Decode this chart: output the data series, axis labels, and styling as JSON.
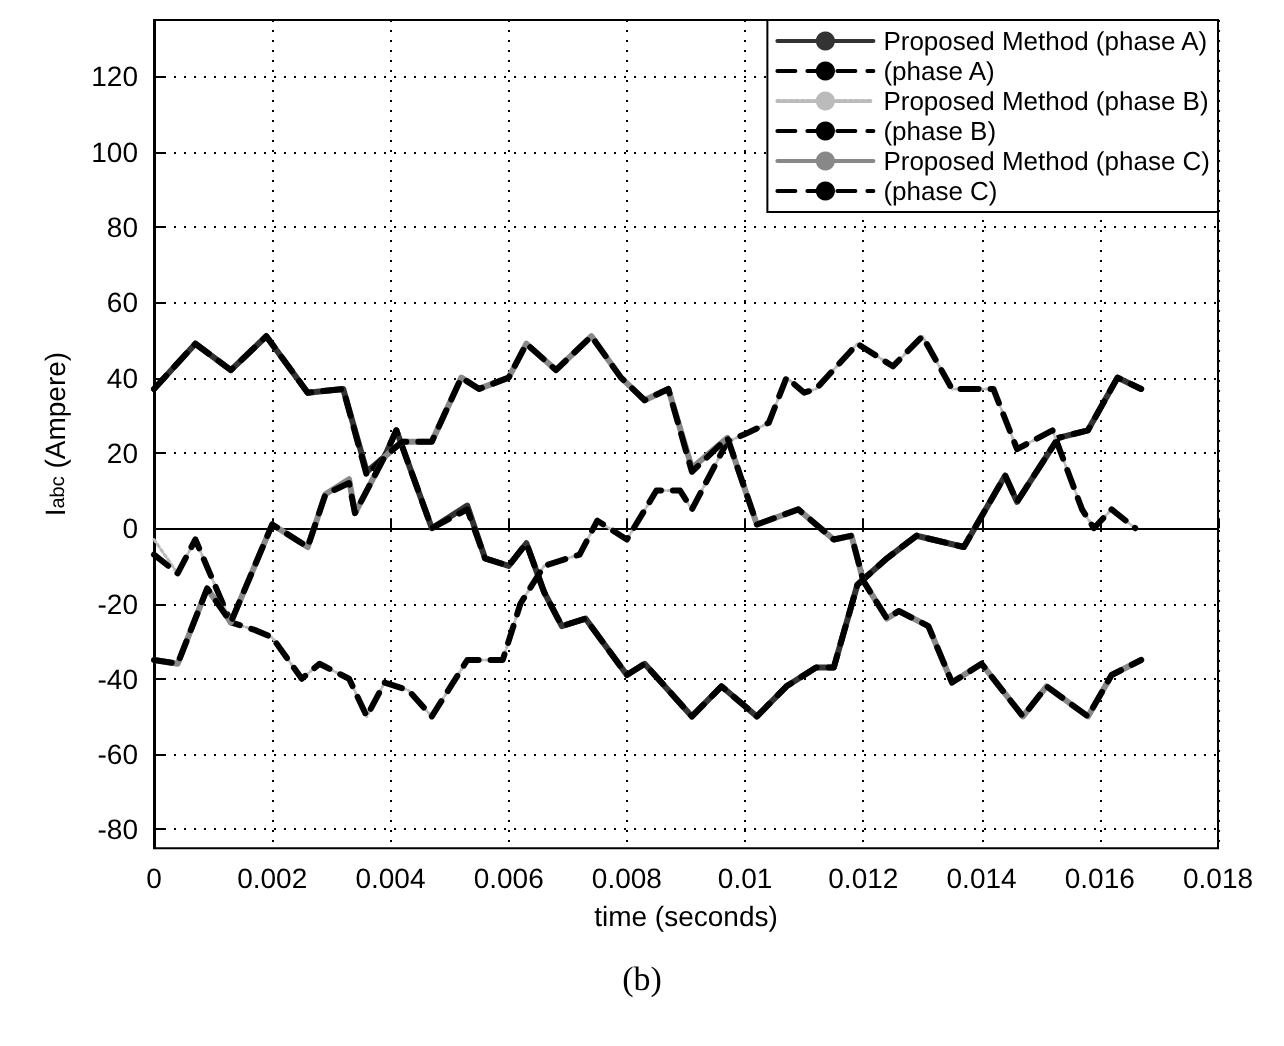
{
  "chart_data": {
    "type": "line",
    "xlabel": "time (seconds)",
    "ylabel": "I$_{abc}$ (Ampere)",
    "annotations": [
      "(b)"
    ],
    "xlim": [
      0,
      0.018
    ],
    "xticks": [
      0,
      0.002,
      0.004,
      0.006,
      0.008,
      0.01,
      0.012,
      0.014,
      0.016,
      0.018
    ],
    "ylim": [
      -85,
      135
    ],
    "yticks": [
      -80,
      -60,
      -40,
      -20,
      0,
      20,
      40,
      60,
      80,
      100,
      120
    ],
    "grid": true,
    "legend": "top right",
    "marker": "none",
    "series": [
      {
        "name": "Proposed Method (phase A)",
        "color": "#333333",
        "line_style": "solid",
        "x": [
          0,
          0.0007,
          0.0013,
          0.0019,
          0.0026,
          0.0032,
          0.0036,
          0.0039,
          0.0041,
          0.0047,
          0.0053,
          0.0056,
          0.006,
          0.0063,
          0.0066,
          0.0069,
          0.0073,
          0.008,
          0.0083,
          0.0091,
          0.0096,
          0.0102,
          0.0107,
          0.0112,
          0.0115,
          0.0119,
          0.0124,
          0.0129,
          0.0137,
          0.0144,
          0.0146,
          0.0153,
          0.0158,
          0.0163,
          0.0167
        ],
        "values": [
          37,
          49,
          42,
          51,
          36,
          37,
          15,
          19,
          26,
          0,
          6,
          -8,
          -10,
          -4,
          -17,
          -26,
          -24,
          -39,
          -36,
          -50,
          -42,
          -50,
          -42,
          -37,
          -37,
          -15,
          -8,
          -2,
          -5,
          14,
          7,
          24,
          26,
          40,
          37
        ]
      },
      {
        "name": "(phase A)",
        "color": "#000000",
        "line_style": "dashed",
        "x": [
          0,
          0.0007,
          0.0013,
          0.0019,
          0.0026,
          0.0032,
          0.0036,
          0.0039,
          0.0041,
          0.0047,
          0.0053,
          0.0056,
          0.006,
          0.0063,
          0.0066,
          0.0069,
          0.0073,
          0.008,
          0.0083,
          0.0091,
          0.0096,
          0.0102,
          0.0107,
          0.0112,
          0.0115,
          0.0119,
          0.0124,
          0.0129,
          0.0137,
          0.0144,
          0.0146,
          0.0153,
          0.0158,
          0.0163,
          0.0167
        ],
        "values": [
          37,
          49,
          42,
          51,
          36,
          37,
          14,
          19,
          26,
          0,
          5,
          -8,
          -10,
          -4,
          -17,
          -26,
          -24,
          -39,
          -36,
          -50,
          -42,
          -50,
          -42,
          -37,
          -37,
          -15,
          -8,
          -2,
          -5,
          14,
          7,
          24,
          26,
          40,
          37
        ]
      },
      {
        "name": "Proposed Method (phase B)",
        "color": "#bbbbbb",
        "line_style": "dotted",
        "x": [
          0,
          0.0004,
          0.0007,
          0.001,
          0.0013,
          0.0017,
          0.002,
          0.0025,
          0.0028,
          0.0033,
          0.0036,
          0.0039,
          0.0043,
          0.0047,
          0.0053,
          0.0059,
          0.0062,
          0.0066,
          0.0072,
          0.0075,
          0.008,
          0.0085,
          0.0089,
          0.0091,
          0.0097,
          0.01,
          0.0104,
          0.0107,
          0.011,
          0.0112,
          0.0119,
          0.0125,
          0.013,
          0.0135,
          0.0142,
          0.0146,
          0.0152,
          0.0157,
          0.0159,
          0.0162,
          0.0166
        ],
        "values": [
          -3,
          -12,
          -3,
          -14,
          -25,
          -27,
          -29,
          -40,
          -36,
          -40,
          -50,
          -41,
          -43,
          -50,
          -35,
          -35,
          -20,
          -10,
          -7,
          2,
          -3,
          10,
          10,
          5,
          23,
          25,
          28,
          40,
          36,
          37,
          49,
          43,
          51,
          37,
          37,
          21,
          26,
          5,
          0,
          5,
          0
        ]
      },
      {
        "name": "(phase B)",
        "color": "#000000",
        "line_style": "dashed",
        "x": [
          0,
          0.0004,
          0.0007,
          0.001,
          0.0013,
          0.0017,
          0.002,
          0.0025,
          0.0028,
          0.0033,
          0.0036,
          0.0039,
          0.0043,
          0.0047,
          0.0053,
          0.0059,
          0.0062,
          0.0066,
          0.0072,
          0.0075,
          0.008,
          0.0085,
          0.0089,
          0.0091,
          0.0097,
          0.01,
          0.0104,
          0.0107,
          0.011,
          0.0112,
          0.0119,
          0.0125,
          0.013,
          0.0135,
          0.0142,
          0.0146,
          0.0152,
          0.0157,
          0.0159,
          0.0162,
          0.0166
        ],
        "values": [
          -7,
          -12,
          -3,
          -14,
          -25,
          -27,
          -29,
          -40,
          -36,
          -40,
          -50,
          -41,
          -43,
          -50,
          -35,
          -35,
          -20,
          -10,
          -7,
          2,
          -3,
          10,
          10,
          5,
          23,
          25,
          28,
          40,
          36,
          37,
          49,
          43,
          51,
          37,
          37,
          21,
          26,
          5,
          0,
          5,
          0
        ]
      },
      {
        "name": "Proposed Method (phase C)",
        "color": "#888888",
        "line_style": "solid",
        "x": [
          0,
          0.0004,
          0.0009,
          0.0013,
          0.002,
          0.0026,
          0.0029,
          0.0033,
          0.0034,
          0.0039,
          0.0042,
          0.0047,
          0.0052,
          0.0055,
          0.006,
          0.0063,
          0.0068,
          0.0074,
          0.0079,
          0.0083,
          0.0087,
          0.0091,
          0.0097,
          0.0102,
          0.0109,
          0.0115,
          0.0118,
          0.012,
          0.0124,
          0.0126,
          0.0131,
          0.0135,
          0.014,
          0.0147,
          0.0151,
          0.0158,
          0.0162,
          0.0167
        ],
        "values": [
          -35,
          -36,
          -16,
          -25,
          1,
          -5,
          9,
          13,
          4,
          19,
          23,
          23,
          40,
          37,
          40,
          49,
          42,
          51,
          40,
          34,
          37,
          16,
          24,
          1,
          5,
          -3,
          -2,
          -14,
          -24,
          -22,
          -26,
          -41,
          -36,
          -50,
          -42,
          -50,
          -39,
          -35
        ]
      },
      {
        "name": "(phase C)",
        "color": "#000000",
        "line_style": "dashed",
        "x": [
          0,
          0.0004,
          0.0009,
          0.0013,
          0.002,
          0.0026,
          0.0029,
          0.0033,
          0.0034,
          0.0039,
          0.0042,
          0.0047,
          0.0052,
          0.0055,
          0.006,
          0.0063,
          0.0068,
          0.0074,
          0.0079,
          0.0083,
          0.0087,
          0.0091,
          0.0097,
          0.0102,
          0.0109,
          0.0115,
          0.0118,
          0.012,
          0.0124,
          0.0126,
          0.0131,
          0.0135,
          0.014,
          0.0147,
          0.0151,
          0.0158,
          0.0162,
          0.0167
        ],
        "values": [
          -35,
          -36,
          -16,
          -25,
          1,
          -5,
          9,
          12,
          4,
          19,
          23,
          23,
          40,
          37,
          40,
          49,
          42,
          51,
          40,
          34,
          37,
          15,
          24,
          1,
          5,
          -3,
          -2,
          -14,
          -24,
          -22,
          -26,
          -41,
          -36,
          -50,
          -42,
          -50,
          -39,
          -35
        ]
      }
    ]
  }
}
